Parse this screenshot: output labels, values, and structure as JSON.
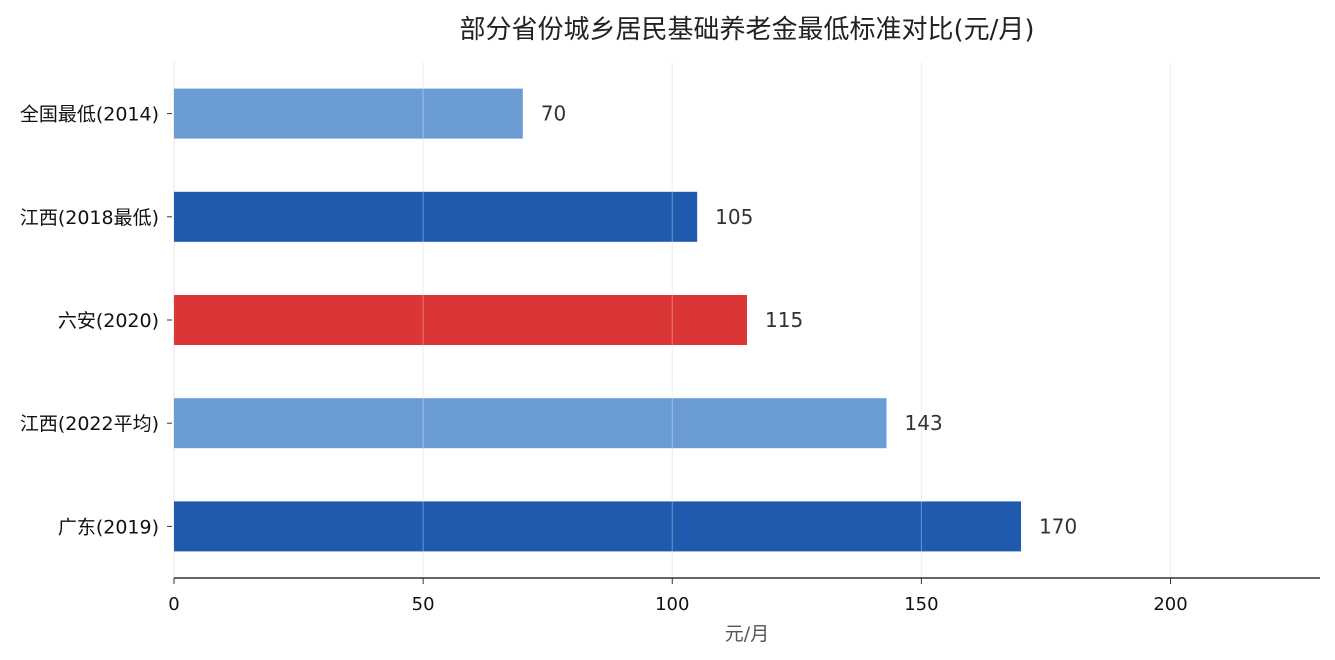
{
  "chart_data": {
    "type": "bar",
    "orientation": "horizontal",
    "title": "部分省份城乡居民基础养老金最低标准对比(元/月)",
    "xlabel": "元/月",
    "ylabel": "",
    "xlim": [
      0,
      230
    ],
    "xticks": [
      0,
      50,
      100,
      150,
      200
    ],
    "xtick_labels": [
      "0",
      "50",
      "100",
      "150",
      "200"
    ],
    "grid": true,
    "categories": [
      "全国最低(2014)",
      "江西(2018最低)",
      "六安(2020)",
      "江西(2022平均)",
      "广东(2019)"
    ],
    "values": [
      70,
      105,
      115,
      143,
      170
    ],
    "value_labels": [
      "70",
      "105",
      "115",
      "143",
      "170"
    ],
    "colors": [
      "#6b9bd3",
      "#1f5aaf",
      "#da3636",
      "#6b9bd3",
      "#1f5aaf"
    ]
  }
}
